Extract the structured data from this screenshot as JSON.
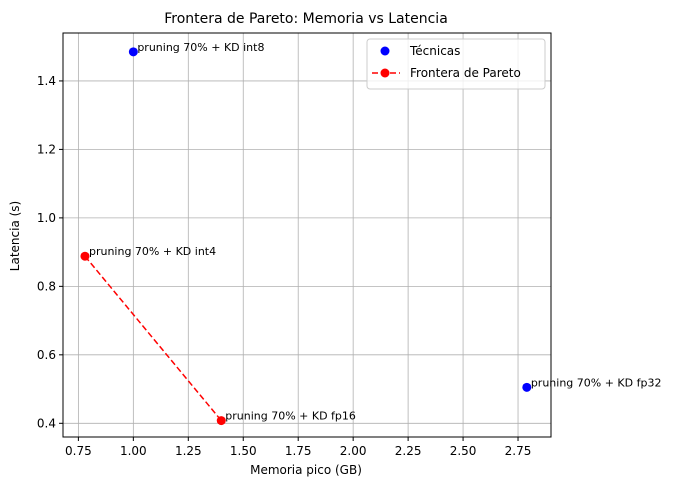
{
  "chart_data": {
    "type": "scatter",
    "title": "Frontera de Pareto: Memoria vs Latencia",
    "xlabel": "Memoria pico (GB)",
    "ylabel": "Latencia (s)",
    "xlim": [
      0.68,
      2.9
    ],
    "ylim": [
      0.36,
      1.54
    ],
    "xticks": [
      "0.75",
      "1.00",
      "1.25",
      "1.50",
      "1.75",
      "2.00",
      "2.25",
      "2.50",
      "2.75"
    ],
    "yticks": [
      "0.4",
      "0.6",
      "0.8",
      "1.0",
      "1.2",
      "1.4"
    ],
    "grid": true,
    "legend_position": "top-right",
    "series": [
      {
        "name": "Técnicas",
        "color": "#0000ff",
        "marker": "circle",
        "points": [
          {
            "x": 1.0,
            "y": 1.485,
            "label": "pruning 70% + KD int8"
          },
          {
            "x": 2.79,
            "y": 0.505,
            "label": "pruning 70% + KD fp32"
          }
        ]
      },
      {
        "name": "Frontera de Pareto",
        "color": "#ff0000",
        "marker": "circle",
        "line": "dashed",
        "points": [
          {
            "x": 0.78,
            "y": 0.888,
            "label": "pruning 70% + KD int4"
          },
          {
            "x": 1.4,
            "y": 0.408,
            "label": "pruning 70% + KD fp16"
          }
        ]
      }
    ]
  }
}
